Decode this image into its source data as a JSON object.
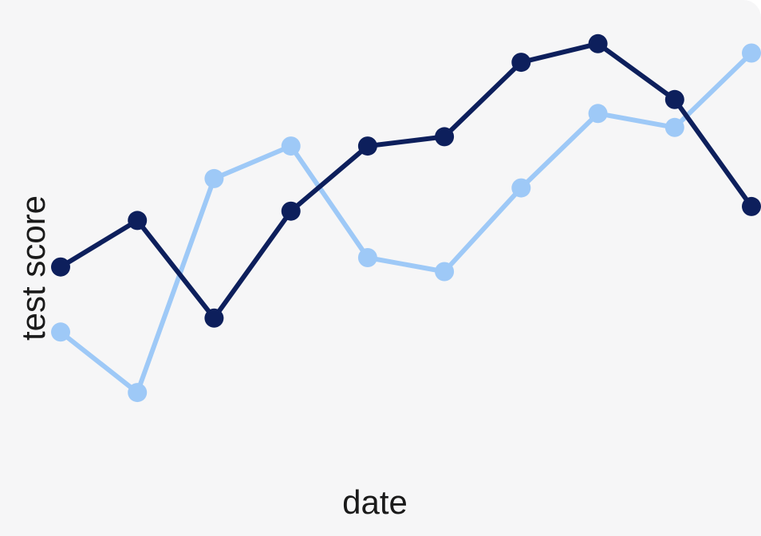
{
  "chart_data": {
    "type": "line",
    "title": "",
    "xlabel": "date",
    "ylabel": "test score",
    "x": [
      1,
      2,
      3,
      4,
      5,
      6,
      7,
      8,
      9,
      10
    ],
    "ylim": [
      0,
      100
    ],
    "grid": false,
    "legend": "none",
    "series": [
      {
        "color": "#0d1f5c",
        "values": [
          51,
          61,
          40,
          63,
          77,
          79,
          95,
          99,
          87,
          64
        ]
      },
      {
        "color": "#9ec9f7",
        "values": [
          37,
          24,
          70,
          77,
          53,
          50,
          68,
          84,
          81,
          97
        ]
      }
    ]
  }
}
